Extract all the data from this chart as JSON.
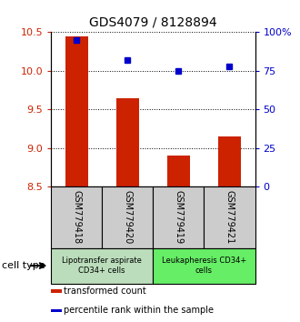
{
  "title": "GDS4079 / 8128894",
  "samples": [
    "GSM779418",
    "GSM779420",
    "GSM779419",
    "GSM779421"
  ],
  "transformed_count": [
    10.45,
    9.65,
    8.9,
    9.15
  ],
  "percentile_rank": [
    95,
    82,
    75,
    78
  ],
  "ylim_left": [
    8.5,
    10.5
  ],
  "ylim_right": [
    0,
    100
  ],
  "yticks_left": [
    8.5,
    9.0,
    9.5,
    10.0,
    10.5
  ],
  "yticks_right": [
    0,
    25,
    50,
    75,
    100
  ],
  "ytick_labels_right": [
    "0",
    "25",
    "50",
    "75",
    "100%"
  ],
  "bar_color": "#cc2200",
  "dot_color": "#0000cc",
  "groups": [
    {
      "label": "Lipotransfer aspirate\nCD34+ cells",
      "indices": [
        0,
        1
      ],
      "color": "#bbddbb"
    },
    {
      "label": "Leukapheresis CD34+\ncells",
      "indices": [
        2,
        3
      ],
      "color": "#66ee66"
    }
  ],
  "cell_type_label": "cell type",
  "legend_items": [
    {
      "color": "#cc2200",
      "label": "transformed count"
    },
    {
      "color": "#0000cc",
      "label": "percentile rank within the sample"
    }
  ],
  "sample_box_color": "#cccccc",
  "bar_width": 0.45
}
